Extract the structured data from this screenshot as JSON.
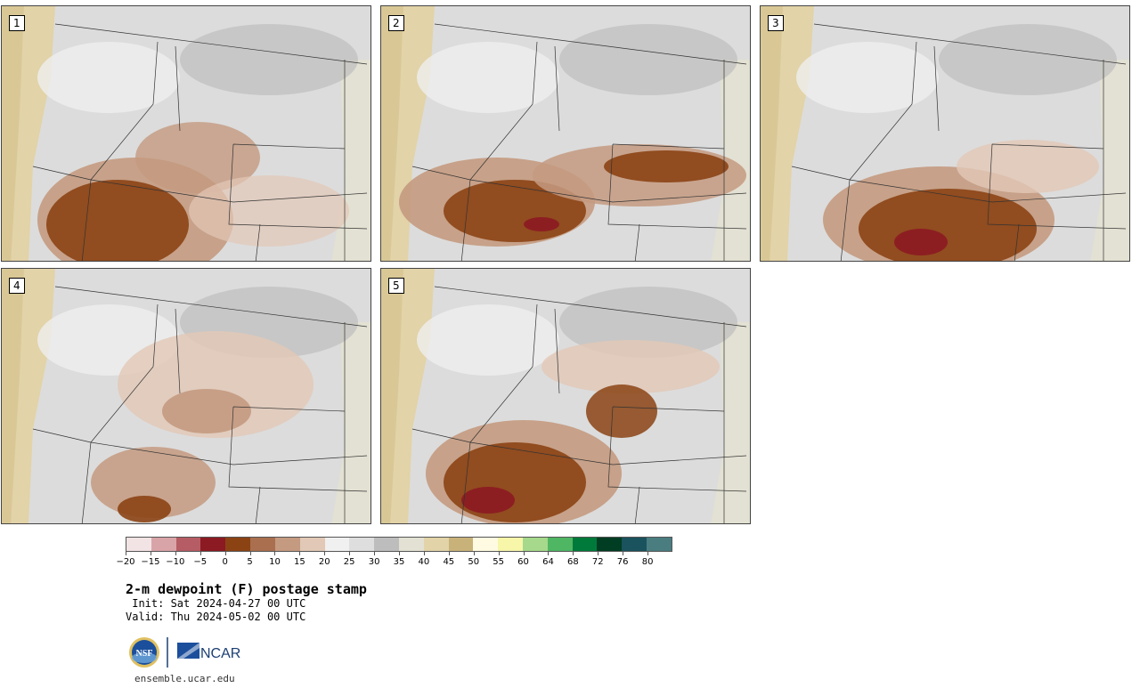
{
  "panels": [
    {
      "label": "1"
    },
    {
      "label": "2"
    },
    {
      "label": "3"
    },
    {
      "label": "4"
    },
    {
      "label": "5"
    }
  ],
  "colorbar": {
    "colors": [
      "#f2e4e4",
      "#d9a4a8",
      "#b65c64",
      "#8c1a22",
      "#8b4314",
      "#a96f4e",
      "#c49a80",
      "#e2c8b6",
      "#f0f0f0",
      "#dedede",
      "#bdbdbd",
      "#e3e1d3",
      "#e2d3a8",
      "#c9b27a",
      "#fffbe2",
      "#f7f6a9",
      "#a6d98b",
      "#4fb664",
      "#007a3a",
      "#003d22",
      "#1a525d",
      "#4a7d80"
    ],
    "tick_labels": [
      "−20",
      "−15",
      "−10",
      "−5",
      "0",
      "5",
      "10",
      "15",
      "20",
      "25",
      "30",
      "35",
      "40",
      "45",
      "50",
      "55",
      "60",
      "64",
      "68",
      "72",
      "76",
      "80"
    ]
  },
  "title": "2-m dewpoint (F) postage stamp",
  "init": " Init: Sat 2024-04-27 00 UTC",
  "valid": "Valid: Thu 2024-05-02 00 UTC",
  "logos": {
    "nsf": "NSF",
    "ncar": "NCAR"
  },
  "url": "ensemble.ucar.edu"
}
